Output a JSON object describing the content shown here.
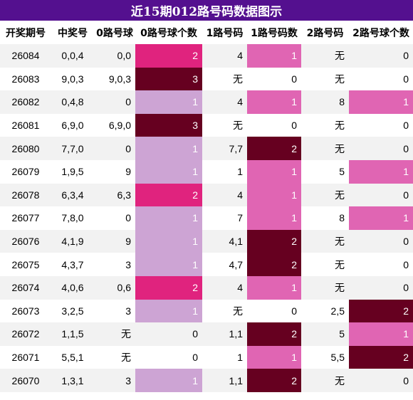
{
  "title": "近15期012路号码数据图示",
  "headers": [
    "开奖期号",
    "中奖号",
    "0路号球",
    "0路号球个数",
    "1路号码",
    "1路号码数",
    "2路号码",
    "2路号球个数"
  ],
  "colors": {
    "title_bg": "#54108f",
    "level_1_light": "#cda4d4",
    "level_1_pink": "#e065b3",
    "level_2_magenta": "#e0237e",
    "level_max_dark": "#660020"
  },
  "rows": [
    [
      "26084",
      "0,0,4",
      "0,0",
      "2",
      "4",
      "1",
      "无",
      "0"
    ],
    [
      "26083",
      "9,0,3",
      "9,0,3",
      "3",
      "无",
      "0",
      "无",
      "0"
    ],
    [
      "26082",
      "0,4,8",
      "0",
      "1",
      "4",
      "1",
      "8",
      "1"
    ],
    [
      "26081",
      "6,9,0",
      "6,9,0",
      "3",
      "无",
      "0",
      "无",
      "0"
    ],
    [
      "26080",
      "7,7,0",
      "0",
      "1",
      "7,7",
      "2",
      "无",
      "0"
    ],
    [
      "26079",
      "1,9,5",
      "9",
      "1",
      "1",
      "1",
      "5",
      "1"
    ],
    [
      "26078",
      "6,3,4",
      "6,3",
      "2",
      "4",
      "1",
      "无",
      "0"
    ],
    [
      "26077",
      "7,8,0",
      "0",
      "1",
      "7",
      "1",
      "8",
      "1"
    ],
    [
      "26076",
      "4,1,9",
      "9",
      "1",
      "4,1",
      "2",
      "无",
      "0"
    ],
    [
      "26075",
      "4,3,7",
      "3",
      "1",
      "4,7",
      "2",
      "无",
      "0"
    ],
    [
      "26074",
      "4,0,6",
      "0,6",
      "2",
      "4",
      "1",
      "无",
      "0"
    ],
    [
      "26073",
      "3,2,5",
      "3",
      "1",
      "无",
      "0",
      "2,5",
      "2"
    ],
    [
      "26072",
      "1,1,5",
      "无",
      "0",
      "1,1",
      "2",
      "5",
      "1"
    ],
    [
      "26071",
      "5,5,1",
      "无",
      "0",
      "1",
      "1",
      "5,5",
      "2"
    ],
    [
      "26070",
      "1,3,1",
      "3",
      "1",
      "1,1",
      "2",
      "无",
      "0"
    ]
  ]
}
